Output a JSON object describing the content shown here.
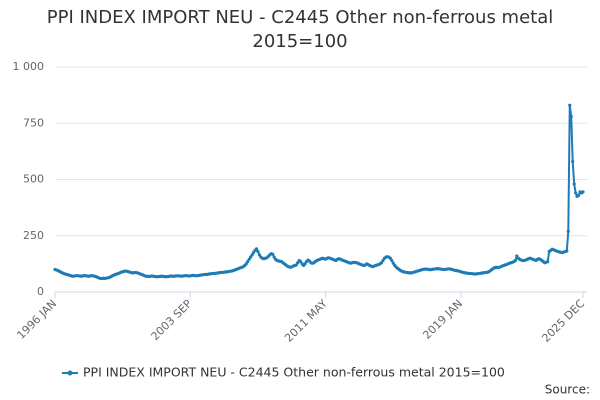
{
  "chart_data": {
    "type": "line",
    "title": "PPI INDEX IMPORT NEU - C2445 Other non-ferrous metal 2015=100",
    "source": "Source:",
    "categories": [
      "1996 JAN",
      null,
      null,
      null,
      null,
      null,
      null,
      null,
      null,
      null,
      null,
      null,
      null,
      null,
      null,
      null,
      null,
      null,
      null,
      null,
      null,
      null,
      null,
      null,
      null,
      null,
      null,
      null,
      null,
      null,
      null,
      null,
      null,
      null,
      null,
      null,
      null,
      null,
      null,
      null,
      null,
      null,
      null,
      null,
      null,
      null,
      null,
      null,
      null,
      null,
      null,
      null,
      null,
      null,
      null,
      null,
      null,
      null,
      null,
      null,
      null,
      null,
      null,
      null,
      null,
      null,
      null,
      null,
      null,
      null,
      null,
      null,
      null,
      null,
      null,
      null,
      null,
      null,
      null,
      null,
      null,
      null,
      null,
      null,
      null,
      null,
      null,
      null,
      null,
      null,
      null,
      null,
      "2003 SEP",
      null,
      null,
      null,
      null,
      null,
      null,
      null,
      null,
      null,
      null,
      null,
      null,
      null,
      null,
      null,
      null,
      null,
      null,
      null,
      null,
      null,
      null,
      null,
      null,
      null,
      null,
      null,
      null,
      null,
      null,
      null,
      null,
      null,
      null,
      null,
      null,
      null,
      null,
      null,
      null,
      null,
      null,
      null,
      null,
      null,
      null,
      null,
      null,
      null,
      null,
      null,
      null,
      null,
      null,
      null,
      null,
      null,
      null,
      null,
      null,
      null,
      null,
      null,
      null,
      null,
      null,
      null,
      null,
      null,
      null,
      null,
      null,
      null,
      null,
      null,
      null,
      null,
      null,
      null,
      null,
      null,
      null,
      null,
      null,
      null,
      null,
      null,
      null,
      null,
      null,
      null,
      "2011 MAY",
      null,
      null,
      null,
      null,
      null,
      null,
      null,
      null,
      null,
      null,
      null,
      null,
      null,
      null,
      null,
      null,
      null,
      null,
      null,
      null,
      null,
      null,
      null,
      null,
      null,
      null,
      null,
      null,
      null,
      null,
      null,
      null,
      null,
      null,
      null,
      null,
      null,
      null,
      null,
      null,
      null,
      null,
      null,
      null,
      null,
      null,
      null,
      null,
      null,
      null,
      null,
      null,
      null,
      null,
      null,
      null,
      null,
      null,
      null,
      null,
      null,
      null,
      null,
      null,
      null,
      null,
      null,
      null,
      null,
      null,
      null,
      null,
      null,
      null,
      null,
      null,
      null,
      null,
      null,
      null,
      null,
      null,
      null,
      null,
      null,
      null,
      null,
      null,
      null,
      null,
      null,
      "2019 JAN",
      null,
      null,
      null,
      null,
      null,
      null,
      null,
      null,
      null,
      null,
      null,
      null,
      null,
      null,
      null,
      null,
      null,
      null,
      null,
      null,
      null,
      null,
      null,
      null,
      null,
      null,
      null,
      null,
      null,
      null,
      null,
      null,
      null,
      null,
      null,
      null,
      null,
      null,
      null,
      null,
      null,
      null,
      null,
      null,
      null,
      null,
      null,
      null,
      null,
      null,
      null,
      null,
      null,
      null,
      null,
      null,
      null,
      null,
      null,
      null,
      null,
      null,
      null,
      null,
      null,
      null,
      null,
      null,
      null,
      null,
      null,
      null,
      null,
      null,
      null,
      null,
      null,
      null,
      null,
      null,
      null,
      null,
      "2025 DEC"
    ],
    "series": [
      {
        "name": "PPI INDEX IMPORT NEU - C2445 Other non-ferrous metal 2015=100",
        "color": "#1f7bb6",
        "values": [
          100,
          98,
          95,
          92,
          88,
          85,
          82,
          80,
          78,
          76,
          74,
          72,
          70,
          71,
          72,
          73,
          72,
          71,
          70,
          72,
          73,
          72,
          71,
          70,
          72,
          73,
          71,
          70,
          68,
          65,
          62,
          60,
          60,
          61,
          60,
          62,
          63,
          65,
          68,
          72,
          75,
          78,
          80,
          82,
          85,
          88,
          90,
          92,
          93,
          92,
          90,
          88,
          86,
          85,
          86,
          87,
          85,
          83,
          80,
          78,
          75,
          72,
          70,
          70,
          69,
          70,
          71,
          70,
          69,
          68,
          68,
          69,
          70,
          70,
          69,
          68,
          68,
          69,
          70,
          71,
          70,
          70,
          71,
          72,
          72,
          71,
          70,
          71,
          72,
          73,
          72,
          71,
          72,
          73,
          74,
          73,
          72,
          73,
          74,
          75,
          76,
          77,
          78,
          78,
          79,
          80,
          81,
          82,
          82,
          83,
          84,
          85,
          86,
          87,
          87,
          88,
          89,
          90,
          91,
          92,
          93,
          95,
          97,
          100,
          102,
          105,
          107,
          110,
          112,
          118,
          125,
          135,
          145,
          155,
          165,
          175,
          185,
          192,
          180,
          165,
          155,
          150,
          148,
          150,
          152,
          158,
          165,
          170,
          168,
          155,
          145,
          140,
          138,
          136,
          135,
          130,
          125,
          120,
          115,
          112,
          110,
          112,
          115,
          118,
          120,
          130,
          140,
          135,
          125,
          118,
          125,
          135,
          142,
          138,
          130,
          128,
          130,
          135,
          140,
          142,
          145,
          148,
          150,
          148,
          146,
          150,
          152,
          150,
          148,
          145,
          142,
          140,
          145,
          148,
          146,
          143,
          140,
          138,
          135,
          133,
          130,
          128,
          130,
          132,
          131,
          130,
          128,
          125,
          122,
          120,
          118,
          120,
          125,
          122,
          118,
          115,
          113,
          115,
          118,
          120,
          122,
          125,
          130,
          140,
          150,
          155,
          157,
          155,
          150,
          140,
          128,
          118,
          110,
          105,
          100,
          95,
          92,
          90,
          88,
          87,
          86,
          85,
          85,
          86,
          88,
          90,
          92,
          94,
          96,
          98,
          100,
          101,
          102,
          101,
          100,
          99,
          100,
          101,
          102,
          103,
          104,
          103,
          102,
          101,
          100,
          100,
          101,
          102,
          103,
          102,
          100,
          98,
          96,
          95,
          94,
          92,
          90,
          88,
          86,
          85,
          84,
          83,
          82,
          82,
          81,
          80,
          80,
          81,
          82,
          83,
          84,
          85,
          86,
          87,
          88,
          90,
          95,
          100,
          105,
          108,
          110,
          108,
          110,
          112,
          115,
          118,
          120,
          122,
          125,
          128,
          130,
          132,
          135,
          140,
          160,
          150,
          145,
          142,
          140,
          140,
          142,
          145,
          148,
          150,
          148,
          145,
          143,
          140,
          145,
          148,
          145,
          140,
          135,
          130,
          132,
          135,
          180,
          185,
          190,
          188,
          185,
          182,
          180,
          178,
          176,
          175,
          178,
          180,
          182,
          270,
          830,
          780,
          580,
          480,
          440,
          425,
          430,
          445,
          440,
          445
        ]
      }
    ],
    "ylim": [
      0,
      1000
    ],
    "yticks": [
      0,
      250,
      500,
      750,
      {
        "value": 1000,
        "label": "1 000"
      }
    ],
    "grid": true
  }
}
